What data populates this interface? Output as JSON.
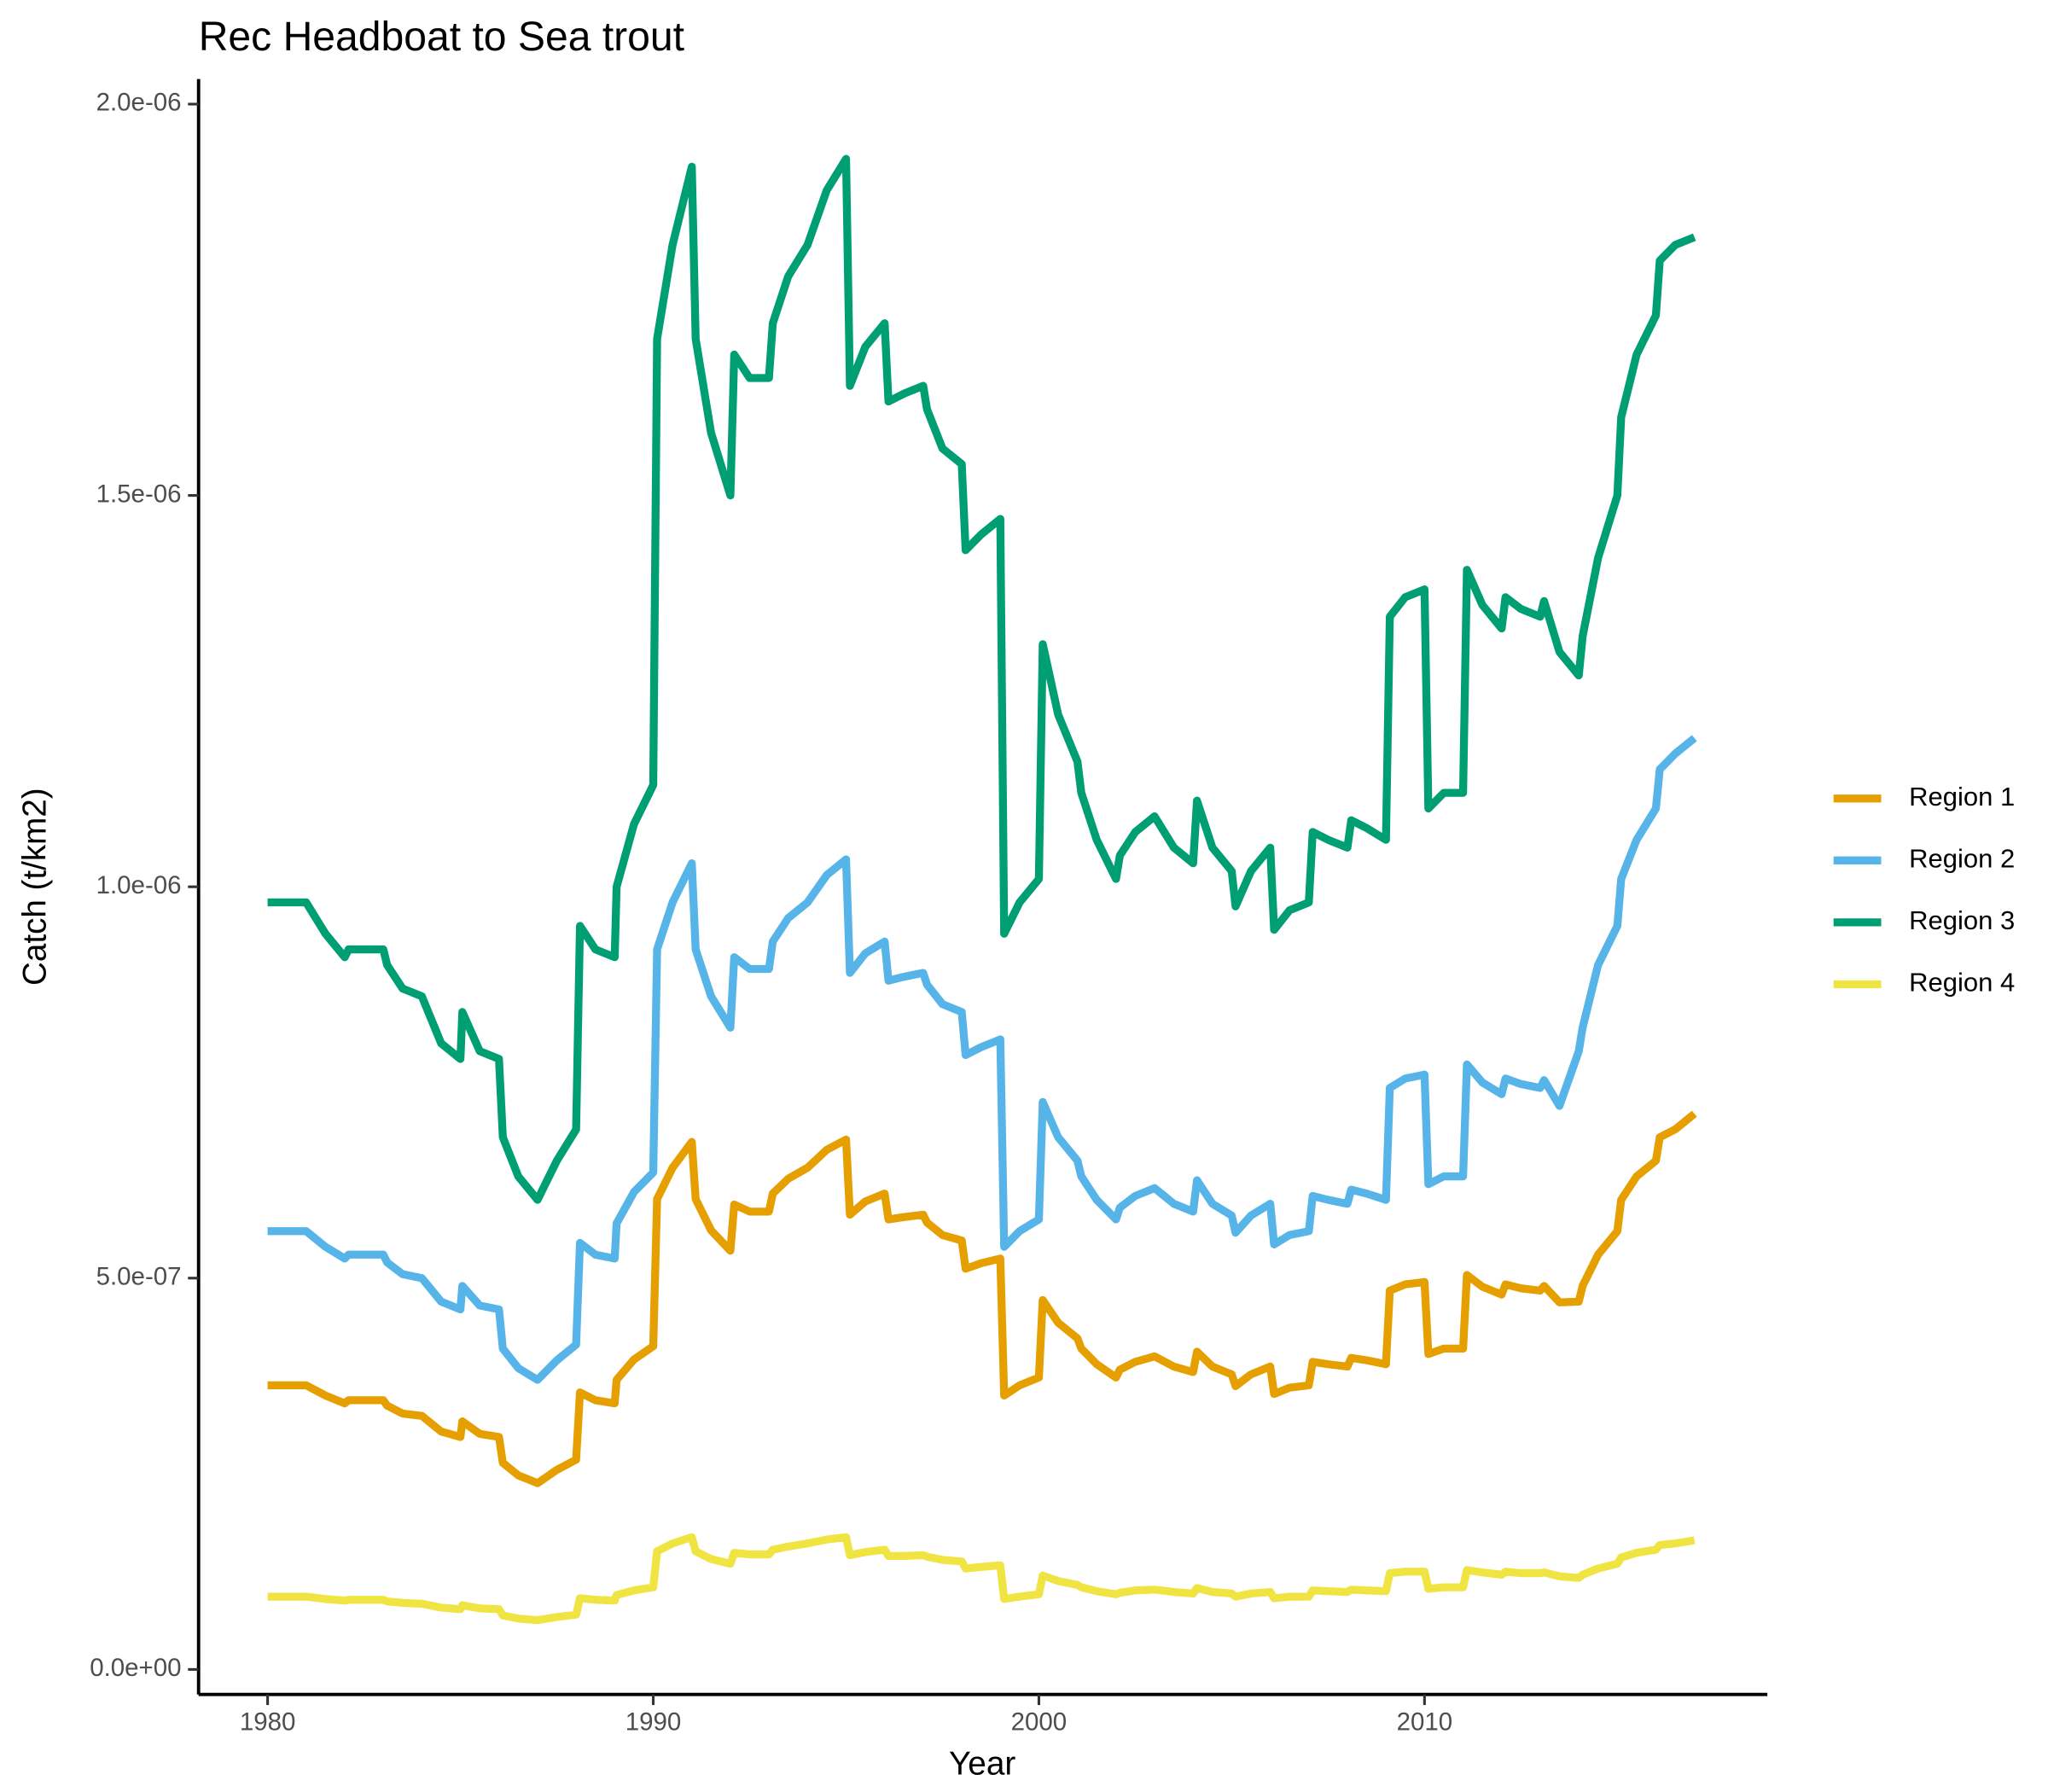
{
  "chart_data": {
    "type": "line",
    "title": "Rec Headboat to Sea trout",
    "xlabel": "Year",
    "ylabel": "Catch (t/km2)",
    "x": [
      1980.0,
      1981.0,
      1981.5,
      1982.0,
      1982.1,
      1983.0,
      1983.1,
      1983.5,
      1984.0,
      1984.5,
      1985.0,
      1985.05,
      1985.5,
      1986.0,
      1986.1,
      1986.5,
      1987.0,
      1987.5,
      1988.0,
      1988.1,
      1988.5,
      1989.0,
      1989.05,
      1989.5,
      1990.0,
      1990.1,
      1990.5,
      1991.0,
      1991.1,
      1991.5,
      1992.0,
      1992.1,
      1992.5,
      1993.0,
      1993.1,
      1993.5,
      1994.0,
      1994.5,
      1995.0,
      1995.1,
      1995.5,
      1996.0,
      1996.1,
      1996.5,
      1997.0,
      1997.1,
      1997.5,
      1998.0,
      1998.1,
      1998.5,
      1999.0,
      1999.1,
      1999.5,
      2000.0,
      2000.1,
      2000.5,
      2001.0,
      2001.1,
      2001.5,
      2002.0,
      2002.1,
      2002.5,
      2003.0,
      2003.5,
      2004.0,
      2004.1,
      2004.5,
      2005.0,
      2005.1,
      2005.5,
      2006.0,
      2006.1,
      2006.5,
      2007.0,
      2007.1,
      2007.5,
      2008.0,
      2008.1,
      2008.5,
      2009.0,
      2009.1,
      2009.5,
      2010.0,
      2010.1,
      2010.5,
      2011.0,
      2011.1,
      2011.5,
      2012.0,
      2012.1,
      2012.5,
      2013.0,
      2013.1,
      2013.5,
      2014.0,
      2014.1,
      2014.5,
      2015.0,
      2015.1,
      2015.5,
      2016.0,
      2016.1,
      2016.5,
      2017.0
    ],
    "series": [
      {
        "name": "Region 1",
        "color": "#E69F00",
        "values": [
          3.63e-07,
          3.63e-07,
          3.5e-07,
          3.4e-07,
          3.44e-07,
          3.44e-07,
          3.37e-07,
          3.27e-07,
          3.24e-07,
          3.04e-07,
          2.97e-07,
          3.17e-07,
          3.01e-07,
          2.97e-07,
          2.64e-07,
          2.48e-07,
          2.38e-07,
          2.55e-07,
          2.68e-07,
          3.54e-07,
          3.44e-07,
          3.4e-07,
          3.7e-07,
          3.96e-07,
          4.13e-07,
          6.01e-07,
          6.41e-07,
          6.74e-07,
          6.01e-07,
          5.61e-07,
          5.35e-07,
          5.94e-07,
          5.85e-07,
          5.85e-07,
          6.08e-07,
          6.27e-07,
          6.41e-07,
          6.64e-07,
          6.77e-07,
          5.81e-07,
          5.98e-07,
          6.08e-07,
          5.75e-07,
          5.78e-07,
          5.81e-07,
          5.71e-07,
          5.55e-07,
          5.48e-07,
          5.12e-07,
          5.19e-07,
          5.25e-07,
          3.5e-07,
          3.63e-07,
          3.73e-07,
          4.72e-07,
          4.43e-07,
          4.23e-07,
          4.1e-07,
          3.9e-07,
          3.73e-07,
          3.83e-07,
          3.93e-07,
          4e-07,
          3.87e-07,
          3.8e-07,
          4.06e-07,
          3.87e-07,
          3.77e-07,
          3.62e-07,
          3.77e-07,
          3.87e-07,
          3.52e-07,
          3.6e-07,
          3.63e-07,
          3.93e-07,
          3.9e-07,
          3.87e-07,
          3.98e-07,
          3.95e-07,
          3.9e-07,
          4.84e-07,
          4.92e-07,
          4.95e-07,
          4.03e-07,
          4.1e-07,
          4.1e-07,
          5.04e-07,
          4.89e-07,
          4.79e-07,
          4.92e-07,
          4.87e-07,
          4.84e-07,
          4.9e-07,
          4.69e-07,
          4.7e-07,
          4.9e-07,
          5.3e-07,
          5.6e-07,
          6e-07,
          6.3e-07,
          6.5e-07,
          6.8e-07,
          6.9e-07,
          7.1e-07
        ]
      },
      {
        "name": "Region 2",
        "color": "#56B4E9",
        "values": [
          5.6e-07,
          5.6e-07,
          5.4e-07,
          5.25e-07,
          5.3e-07,
          5.3e-07,
          5.2e-07,
          5.05e-07,
          5e-07,
          4.7e-07,
          4.6e-07,
          4.9e-07,
          4.65e-07,
          4.6e-07,
          4.1e-07,
          3.85e-07,
          3.7e-07,
          3.95e-07,
          4.15e-07,
          5.45e-07,
          5.3e-07,
          5.25e-07,
          5.7e-07,
          6.1e-07,
          6.35e-07,
          9.2e-07,
          9.8e-07,
          1.03e-06,
          9.2e-07,
          8.6e-07,
          8.2e-07,
          9.1e-07,
          8.95e-07,
          8.95e-07,
          9.3e-07,
          9.6e-07,
          9.8e-07,
          1.015e-06,
          1.035e-06,
          8.9e-07,
          9.15e-07,
          9.3e-07,
          8.8e-07,
          8.85e-07,
          8.9e-07,
          8.75e-07,
          8.5e-07,
          8.4e-07,
          7.85e-07,
          7.95e-07,
          8.05e-07,
          5.4e-07,
          5.6e-07,
          5.75e-07,
          7.25e-07,
          6.8e-07,
          6.5e-07,
          6.3e-07,
          6e-07,
          5.75e-07,
          5.9e-07,
          6.05e-07,
          6.15e-07,
          5.95e-07,
          5.85e-07,
          6.25e-07,
          5.95e-07,
          5.8e-07,
          5.58e-07,
          5.8e-07,
          5.95e-07,
          5.43e-07,
          5.55e-07,
          5.6e-07,
          6.05e-07,
          6e-07,
          5.95e-07,
          6.13e-07,
          6.08e-07,
          6e-07,
          7.43e-07,
          7.55e-07,
          7.6e-07,
          6.2e-07,
          6.3e-07,
          6.3e-07,
          7.73e-07,
          7.5e-07,
          7.35e-07,
          7.55e-07,
          7.48e-07,
          7.43e-07,
          7.53e-07,
          7.2e-07,
          7.9e-07,
          8.2e-07,
          9e-07,
          9.5e-07,
          1.01e-06,
          1.06e-06,
          1.1e-06,
          1.15e-06,
          1.17e-06,
          1.19e-06
        ]
      },
      {
        "name": "Region 3",
        "color": "#009E73",
        "values": [
          9.8e-07,
          9.8e-07,
          9.4e-07,
          9.1e-07,
          9.2e-07,
          9.2e-07,
          9e-07,
          8.7e-07,
          8.6e-07,
          8e-07,
          7.8e-07,
          8.4e-07,
          7.9e-07,
          7.8e-07,
          6.8e-07,
          6.3e-07,
          6e-07,
          6.5e-07,
          6.9e-07,
          9.5e-07,
          9.2e-07,
          9.1e-07,
          1e-06,
          1.08e-06,
          1.13e-06,
          1.7e-06,
          1.82e-06,
          1.92e-06,
          1.7e-06,
          1.58e-06,
          1.5e-06,
          1.68e-06,
          1.65e-06,
          1.65e-06,
          1.72e-06,
          1.78e-06,
          1.82e-06,
          1.89e-06,
          1.93e-06,
          1.64e-06,
          1.69e-06,
          1.72e-06,
          1.62e-06,
          1.63e-06,
          1.64e-06,
          1.61e-06,
          1.56e-06,
          1.54e-06,
          1.43e-06,
          1.45e-06,
          1.47e-06,
          9.4e-07,
          9.8e-07,
          1.01e-06,
          1.31e-06,
          1.22e-06,
          1.16e-06,
          1.12e-06,
          1.06e-06,
          1.01e-06,
          1.04e-06,
          1.07e-06,
          1.09e-06,
          1.05e-06,
          1.03e-06,
          1.11e-06,
          1.05e-06,
          1.02e-06,
          9.75e-07,
          1.02e-06,
          1.05e-06,
          9.45e-07,
          9.7e-07,
          9.8e-07,
          1.07e-06,
          1.06e-06,
          1.05e-06,
          1.085e-06,
          1.075e-06,
          1.06e-06,
          1.345e-06,
          1.37e-06,
          1.38e-06,
          1.1e-06,
          1.12e-06,
          1.12e-06,
          1.405e-06,
          1.36e-06,
          1.33e-06,
          1.37e-06,
          1.355e-06,
          1.345e-06,
          1.365e-06,
          1.3e-06,
          1.27e-06,
          1.32e-06,
          1.42e-06,
          1.5e-06,
          1.6e-06,
          1.68e-06,
          1.73e-06,
          1.8e-06,
          1.82e-06,
          1.83e-06
        ]
      },
      {
        "name": "Region 4",
        "color": "#F0E442",
        "values": [
          9.3e-08,
          9.3e-08,
          9e-08,
          8.8e-08,
          8.9e-08,
          8.9e-08,
          8.7e-08,
          8.5e-08,
          8.4e-08,
          7.9e-08,
          7.7e-08,
          8.2e-08,
          7.8e-08,
          7.7e-08,
          6.9e-08,
          6.5e-08,
          6.3e-08,
          6.7e-08,
          7e-08,
          9.1e-08,
          8.9e-08,
          8.8e-08,
          9.5e-08,
          1.01e-07,
          1.05e-07,
          1.51e-07,
          1.61e-07,
          1.69e-07,
          1.51e-07,
          1.41e-07,
          1.35e-07,
          1.49e-07,
          1.47e-07,
          1.47e-07,
          1.53e-07,
          1.57e-07,
          1.61e-07,
          1.66e-07,
          1.69e-07,
          1.46e-07,
          1.5e-07,
          1.53e-07,
          1.45e-07,
          1.45e-07,
          1.46e-07,
          1.44e-07,
          1.4e-07,
          1.38e-07,
          1.29e-07,
          1.31e-07,
          1.33e-07,
          9e-08,
          9.3e-08,
          9.6e-08,
          1.2e-07,
          1.13e-07,
          1.08e-07,
          1.05e-07,
          1e-07,
          9.6e-08,
          9.8e-08,
          1.01e-07,
          1.02e-07,
          9.9e-08,
          9.7e-08,
          1.04e-07,
          9.9e-08,
          9.7e-08,
          9.3e-08,
          9.7e-08,
          9.9e-08,
          9.1e-08,
          9.3e-08,
          9.3e-08,
          1.01e-07,
          1e-07,
          9.9e-08,
          1.02e-07,
          1.01e-07,
          1e-07,
          1.23e-07,
          1.25e-07,
          1.25e-07,
          1.03e-07,
          1.05e-07,
          1.05e-07,
          1.27e-07,
          1.24e-07,
          1.21e-07,
          1.25e-07,
          1.23e-07,
          1.23e-07,
          1.24e-07,
          1.19e-07,
          1.17e-07,
          1.21e-07,
          1.29e-07,
          1.35e-07,
          1.43e-07,
          1.49e-07,
          1.53e-07,
          1.59e-07,
          1.61e-07,
          1.65e-07
        ]
      }
    ],
    "xlim": [
      1978.21,
      2018.89
    ],
    "ylim": [
      -3.2e-08,
      2.032e-06
    ],
    "xticks": [
      1980,
      1990,
      2000,
      2010
    ],
    "yticks": [
      {
        "value": 0,
        "label": "0.0e+00"
      },
      {
        "value": 5e-07,
        "label": "5.0e-07"
      },
      {
        "value": 1e-06,
        "label": "1.0e-06"
      },
      {
        "value": 1.5e-06,
        "label": "1.5e-06"
      },
      {
        "value": 2e-06,
        "label": "2.0e-06"
      }
    ],
    "legend": "right"
  }
}
